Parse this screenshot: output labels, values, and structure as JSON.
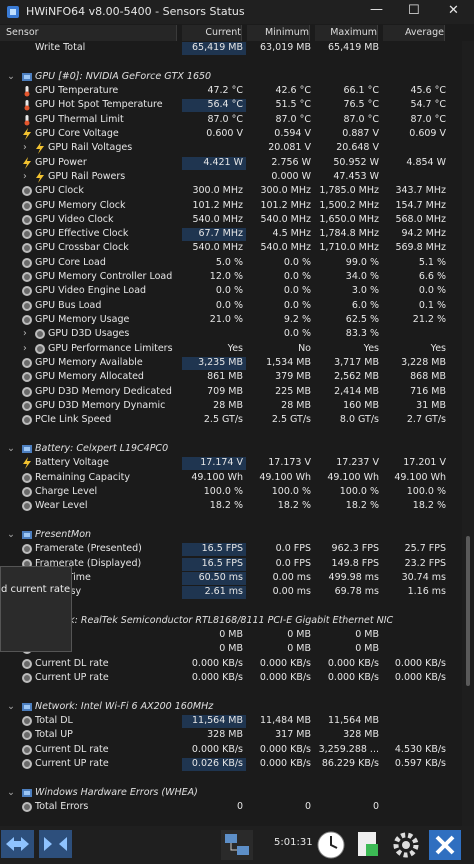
{
  "window": {
    "title": "HWiNFO64 v8.00-5400 - Sensors Status"
  },
  "header": [
    "Sensor",
    "Current",
    "Minimum",
    "Maximum",
    "Average"
  ],
  "rows": [
    {
      "name": "Write Total",
      "current": "65,419 MB",
      "min": "63,019 MB",
      "max": "65,419 MB",
      "avg": null,
      "hl": true
    },
    null,
    {
      "group": "GPU [#0]: NVIDIA GeForce GTX 1650"
    },
    {
      "name": "GPU Temperature",
      "icon": "temp",
      "current": "47.2 °C",
      "min": "42.6 °C",
      "max": "66.1 °C",
      "avg": "45.6 °C"
    },
    {
      "name": "GPU Hot Spot Temperature",
      "icon": "temp",
      "current": "56.4 °C",
      "min": "51.5 °C",
      "max": "76.5 °C",
      "avg": "54.7 °C",
      "hl": true
    },
    {
      "name": "GPU Thermal Limit",
      "icon": "temp",
      "current": "87.0 °C",
      "min": "87.0 °C",
      "max": "87.0 °C",
      "avg": "87.0 °C"
    },
    {
      "name": "GPU Core Voltage",
      "icon": "volt",
      "current": "0.600 V",
      "min": "0.594 V",
      "max": "0.887 V",
      "avg": "0.609 V"
    },
    {
      "name": "GPU Rail Voltages",
      "icon": "volt",
      "expand": true,
      "current": null,
      "min": "20.081 V",
      "max": "20.648 V",
      "avg": null
    },
    {
      "name": "GPU Power",
      "icon": "volt",
      "current": "4.421 W",
      "min": "2.756 W",
      "max": "50.952 W",
      "avg": "4.854 W",
      "hl": true
    },
    {
      "name": "GPU Rail Powers",
      "icon": "volt",
      "expand": true,
      "current": null,
      "min": "0.000 W",
      "max": "47.453 W",
      "avg": null
    },
    {
      "name": "GPU Clock",
      "icon": "gauge",
      "current": "300.0 MHz",
      "min": "300.0 MHz",
      "max": "1,785.0 MHz",
      "avg": "343.7 MHz"
    },
    {
      "name": "GPU Memory Clock",
      "icon": "gauge",
      "current": "101.2 MHz",
      "min": "101.2 MHz",
      "max": "1,500.2 MHz",
      "avg": "154.7 MHz"
    },
    {
      "name": "GPU Video Clock",
      "icon": "gauge",
      "current": "540.0 MHz",
      "min": "540.0 MHz",
      "max": "1,650.0 MHz",
      "avg": "568.0 MHz"
    },
    {
      "name": "GPU Effective Clock",
      "icon": "gauge",
      "current": "67.7 MHz",
      "min": "4.5 MHz",
      "max": "1,784.8 MHz",
      "avg": "94.2 MHz",
      "hl": true
    },
    {
      "name": "GPU Crossbar Clock",
      "icon": "gauge",
      "current": "540.0 MHz",
      "min": "540.0 MHz",
      "max": "1,710.0 MHz",
      "avg": "569.8 MHz"
    },
    {
      "name": "GPU Core Load",
      "icon": "gauge",
      "current": "5.0 %",
      "min": "0.0 %",
      "max": "99.0 %",
      "avg": "5.1 %"
    },
    {
      "name": "GPU Memory Controller Load",
      "icon": "gauge",
      "current": "12.0 %",
      "min": "0.0 %",
      "max": "34.0 %",
      "avg": "6.6 %"
    },
    {
      "name": "GPU Video Engine Load",
      "icon": "gauge",
      "current": "0.0 %",
      "min": "0.0 %",
      "max": "3.0 %",
      "avg": "0.0 %"
    },
    {
      "name": "GPU Bus Load",
      "icon": "gauge",
      "current": "0.0 %",
      "min": "0.0 %",
      "max": "6.0 %",
      "avg": "0.1 %"
    },
    {
      "name": "GPU Memory Usage",
      "icon": "gauge",
      "current": "21.0 %",
      "min": "9.2 %",
      "max": "62.5 %",
      "avg": "21.2 %"
    },
    {
      "name": "GPU D3D Usages",
      "icon": "gauge",
      "expand": true,
      "current": null,
      "min": "0.0 %",
      "max": "83.3 %",
      "avg": null
    },
    {
      "name": "GPU Performance Limiters",
      "icon": "gauge",
      "expand": true,
      "current": "Yes",
      "min": "No",
      "max": "Yes",
      "avg": "Yes"
    },
    {
      "name": "GPU Memory Available",
      "icon": "gauge",
      "current": "3,235 MB",
      "min": "1,534 MB",
      "max": "3,717 MB",
      "avg": "3,228 MB",
      "hl": true
    },
    {
      "name": "GPU Memory Allocated",
      "icon": "gauge",
      "current": "861 MB",
      "min": "379 MB",
      "max": "2,562 MB",
      "avg": "868 MB"
    },
    {
      "name": "GPU D3D Memory Dedicated",
      "icon": "gauge",
      "current": "709 MB",
      "min": "225 MB",
      "max": "2,414 MB",
      "avg": "716 MB"
    },
    {
      "name": "GPU D3D Memory Dynamic",
      "icon": "gauge",
      "current": "28 MB",
      "min": "28 MB",
      "max": "160 MB",
      "avg": "31 MB"
    },
    {
      "name": "PCIe Link Speed",
      "icon": "gauge",
      "current": "2.5 GT/s",
      "min": "2.5 GT/s",
      "max": "8.0 GT/s",
      "avg": "2.7 GT/s"
    },
    null,
    {
      "group": "Battery: Celxpert L19C4PC0"
    },
    {
      "name": "Battery Voltage",
      "icon": "volt",
      "current": "17.174 V",
      "min": "17.173 V",
      "max": "17.237 V",
      "avg": "17.201 V",
      "hl": true
    },
    {
      "name": "Remaining Capacity",
      "icon": "gauge",
      "current": "49.100 Wh",
      "min": "49.100 Wh",
      "max": "49.100 Wh",
      "avg": "49.100 Wh"
    },
    {
      "name": "Charge Level",
      "icon": "gauge",
      "current": "100.0 %",
      "min": "100.0 %",
      "max": "100.0 %",
      "avg": "100.0 %"
    },
    {
      "name": "Wear Level",
      "icon": "gauge",
      "current": "18.2 %",
      "min": "18.2 %",
      "max": "18.2 %",
      "avg": "18.2 %"
    },
    null,
    {
      "group": "PresentMon"
    },
    {
      "name": "Framerate (Presented)",
      "icon": "gauge",
      "current": "16.5 FPS",
      "min": "0.0 FPS",
      "max": "962.3 FPS",
      "avg": "25.7 FPS",
      "hl": true
    },
    {
      "name": "Framerate (Displayed)",
      "icon": "gauge",
      "current": "16.5 FPS",
      "min": "0.0 FPS",
      "max": "149.8 FPS",
      "avg": "23.2 FPS",
      "hl": true
    },
    {
      "name": "Frame Time",
      "icon": "gauge",
      "current": "60.50 ms",
      "min": "0.00 ms",
      "max": "499.98 ms",
      "avg": "30.74 ms",
      "hl": true
    },
    {
      "name": "GPU Busy",
      "icon": "gauge",
      "current": "2.61 ms",
      "min": "0.00 ms",
      "max": "69.78 ms",
      "avg": "1.16 ms",
      "hl": true
    },
    null,
    {
      "group": "Network: RealTek Semiconductor RTL8168/8111 PCI-E Gigabit Ethernet NIC"
    },
    {
      "name": null,
      "icon": "gauge",
      "current": "0 MB",
      "min": "0 MB",
      "max": "0 MB",
      "avg": null
    },
    {
      "name": null,
      "icon": "gauge",
      "current": "0 MB",
      "min": "0 MB",
      "max": "0 MB",
      "avg": null
    },
    {
      "name": "Current DL rate",
      "icon": "gauge",
      "current": "0.000 KB/s",
      "min": "0.000 KB/s",
      "max": "0.000 KB/s",
      "avg": "0.000 KB/s"
    },
    {
      "name": "Current UP rate",
      "icon": "gauge",
      "current": "0.000 KB/s",
      "min": "0.000 KB/s",
      "max": "0.000 KB/s",
      "avg": "0.000 KB/s"
    },
    null,
    {
      "group": "Network: Intel Wi-Fi 6 AX200 160MHz"
    },
    {
      "name": "Total DL",
      "icon": "gauge",
      "current": "11,564 MB",
      "min": "11,484 MB",
      "max": "11,564 MB",
      "avg": null,
      "hl": true
    },
    {
      "name": "Total UP",
      "icon": "gauge",
      "current": "328 MB",
      "min": "317 MB",
      "max": "328 MB",
      "avg": null
    },
    {
      "name": "Current DL rate",
      "icon": "gauge",
      "current": "0.000 KB/s",
      "min": "0.000 KB/s",
      "max": "3,259.288 ...",
      "avg": "4.530 KB/s"
    },
    {
      "name": "Current UP rate",
      "icon": "gauge",
      "current": "0.026 KB/s",
      "min": "0.000 KB/s",
      "max": "86.229 KB/s",
      "avg": "0.597 KB/s",
      "hl": true
    },
    null,
    {
      "group": "Windows Hardware Errors (WHEA)"
    },
    {
      "name": "Total Errors",
      "icon": "gauge",
      "current": "0",
      "min": "0",
      "max": "0",
      "avg": null
    }
  ],
  "tooltip": {
    "text": "d current rate"
  },
  "toolbar": {
    "time": "5:01:31"
  }
}
